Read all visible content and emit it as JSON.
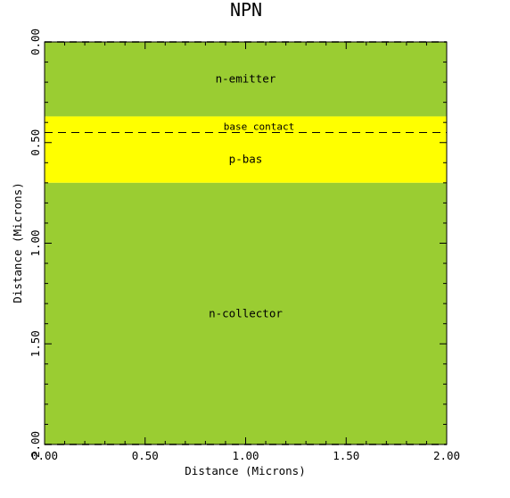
{
  "title": "NPN",
  "x_axis": {
    "label": "Distance (Microns)",
    "ticks": [
      "0.00",
      "0.50",
      "1.00",
      "1.50",
      "2.00"
    ],
    "range": [
      0,
      2.0
    ]
  },
  "y_axis": {
    "label": "Distance (Microns)",
    "ticks": [
      "0.00",
      "0.50",
      "1.00",
      "1.50",
      "2.00"
    ],
    "range": [
      0,
      2.0
    ],
    "inverted": true
  },
  "regions": [
    {
      "name": "emitter",
      "label": "n-emitter",
      "y_from": 0.0,
      "y_to": 0.37,
      "color": "#9ACD32"
    },
    {
      "name": "base",
      "label": "p-bas",
      "y_from": 0.37,
      "y_to": 0.7,
      "color": "#FFFF00"
    },
    {
      "name": "collector",
      "label": "n-collector",
      "y_from": 0.7,
      "y_to": 2.0,
      "color": "#9ACD32"
    }
  ],
  "contact": {
    "label": "base contact",
    "y": 0.45,
    "style": "dashed"
  },
  "colors": {
    "device_green": "#9ACD32",
    "base_yellow": "#FFFF00"
  }
}
